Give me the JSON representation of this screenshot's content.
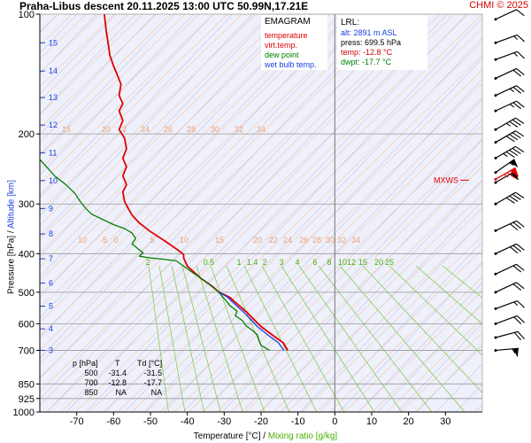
{
  "header": {
    "title": "Praha-Libus   descent   20.11.2025 13:00 UTC   50.99N,17.21E",
    "copyright": "CHMI © 2025"
  },
  "legend": {
    "title": "EMAGRAM",
    "items": [
      {
        "label": "temperature",
        "color": "#e00000"
      },
      {
        "label": "virt.temp.",
        "color": "#e00000"
      },
      {
        "label": "dew point",
        "color": "#008000"
      },
      {
        "label": "wet bulb temp.",
        "color": "#1a3fe0"
      }
    ]
  },
  "lrl": {
    "title": "LRL:",
    "alt": "alt: 2891 m ASL",
    "press": "press: 699.5 hPa",
    "temp": "temp: -12.8 °C",
    "dwpt": "dwpt: -17.7 °C",
    "colors": {
      "alt": "#1a3fe0",
      "press": "#000000",
      "temp": "#d40000",
      "dwpt": "#008000"
    }
  },
  "table": {
    "headers": [
      "p [hPa]",
      "T",
      "Td [°C]"
    ],
    "rows": [
      [
        "500",
        "-31.4",
        "-31.5"
      ],
      [
        "700",
        "-12.8",
        "-17.7"
      ],
      [
        "850",
        "NA",
        "NA"
      ]
    ]
  },
  "axes": {
    "xlabel": "Temperature [°C]",
    "xlabel_sep": "/",
    "xlabel2": "Mixing ratio [g/kg]",
    "ylabel": "Pressure [hPa]",
    "ylabel_sep": "/",
    "ylabel2": "Altitude [km]"
  },
  "mxws_label": "MXWS",
  "chart_data": {
    "type": "line",
    "y_scale": "log-pressure",
    "xlim": [
      -80,
      40
    ],
    "ylim": [
      1000,
      100
    ],
    "x_ticks": [
      -70,
      -60,
      -50,
      -40,
      -30,
      -20,
      -10,
      0,
      10,
      20,
      30
    ],
    "pressure_ticks": [
      100,
      200,
      300,
      400,
      500,
      600,
      700,
      850,
      925,
      1000
    ],
    "altitude_ticks": [
      {
        "km": 3,
        "p": 700
      },
      {
        "km": 4,
        "p": 618
      },
      {
        "km": 5,
        "p": 542
      },
      {
        "km": 6,
        "p": 474
      },
      {
        "km": 7,
        "p": 412
      },
      {
        "km": 8,
        "p": 357
      },
      {
        "km": 9,
        "p": 308
      },
      {
        "km": 10,
        "p": 262
      },
      {
        "km": 11,
        "p": 223
      },
      {
        "km": 12,
        "p": 190
      },
      {
        "km": 13,
        "p": 162
      },
      {
        "km": 14,
        "p": 139
      },
      {
        "km": 15,
        "p": 118
      }
    ],
    "isotherm_labels": {
      "row1_p": 200,
      "row1": [
        "15",
        "20",
        "2",
        "24",
        "26",
        "28",
        "30",
        "32",
        "34"
      ],
      "row2_p": 395,
      "row2": [
        "10",
        "-5",
        "0",
        "5",
        "10",
        "15",
        "20",
        "22",
        "24",
        "26",
        "28",
        "30",
        "32",
        "34"
      ]
    },
    "mixing_ratio_labels": [
      "2",
      "0.5",
      "1",
      "1.4",
      "2",
      "3",
      "4",
      "6",
      "8",
      "10",
      "12",
      "15",
      "20",
      "25"
    ],
    "series": [
      {
        "name": "temperature",
        "color": "#e00000",
        "points": [
          [
            -12.8,
            700
          ],
          [
            -14,
            670
          ],
          [
            -17,
            640
          ],
          [
            -20,
            610
          ],
          [
            -22,
            585
          ],
          [
            -24,
            560
          ],
          [
            -26.5,
            535
          ],
          [
            -28.5,
            515
          ],
          [
            -31.4,
            500
          ],
          [
            -33,
            485
          ],
          [
            -36.5,
            460
          ],
          [
            -40,
            430
          ],
          [
            -41,
            410
          ],
          [
            -41,
            402
          ],
          [
            -42.5,
            392
          ],
          [
            -46,
            372
          ],
          [
            -50,
            352
          ],
          [
            -53,
            335
          ],
          [
            -55,
            320
          ],
          [
            -56,
            308
          ],
          [
            -57,
            296
          ],
          [
            -57.5,
            280
          ],
          [
            -56.5,
            268
          ],
          [
            -57.5,
            255
          ],
          [
            -56.5,
            242
          ],
          [
            -57.5,
            230
          ],
          [
            -56.5,
            218
          ],
          [
            -57,
            205
          ],
          [
            -58.5,
            195
          ],
          [
            -57.5,
            185
          ],
          [
            -58.5,
            175
          ],
          [
            -57.5,
            168
          ],
          [
            -58.5,
            160
          ],
          [
            -58,
            150
          ],
          [
            -59,
            142
          ],
          [
            -60,
            135
          ],
          [
            -61,
            127
          ],
          [
            -61.5,
            118
          ],
          [
            -62,
            110
          ],
          [
            -62.5,
            100
          ]
        ]
      },
      {
        "name": "virt.temp.",
        "color": "#e00000",
        "points": [
          [
            -12.7,
            700
          ],
          [
            -13.9,
            670
          ],
          [
            -16.9,
            640
          ],
          [
            -19.9,
            610
          ],
          [
            -21.9,
            585
          ],
          [
            -23.9,
            560
          ],
          [
            -26.4,
            535
          ],
          [
            -28.5,
            515
          ],
          [
            -31.4,
            500
          ]
        ]
      },
      {
        "name": "dew point",
        "color": "#008000",
        "points": [
          [
            -17.7,
            700
          ],
          [
            -20,
            680
          ],
          [
            -20.5,
            662
          ],
          [
            -21,
            640
          ],
          [
            -22.5,
            622
          ],
          [
            -24,
            608
          ],
          [
            -25,
            590
          ],
          [
            -27,
            572
          ],
          [
            -26.5,
            558
          ],
          [
            -28.5,
            540
          ],
          [
            -29.5,
            525
          ],
          [
            -31.5,
            500
          ],
          [
            -35,
            470
          ],
          [
            -38,
            450
          ],
          [
            -41,
            430
          ],
          [
            -43,
            417
          ],
          [
            -46.5,
            413
          ],
          [
            -50,
            410
          ],
          [
            -53,
            406
          ],
          [
            -52,
            398
          ],
          [
            -53.5,
            388
          ],
          [
            -55,
            378
          ],
          [
            -54,
            366
          ],
          [
            -55,
            355
          ],
          [
            -57,
            346
          ],
          [
            -60,
            338
          ],
          [
            -63,
            328
          ],
          [
            -66,
            318
          ],
          [
            -67.5,
            308
          ],
          [
            -69,
            296
          ],
          [
            -70.5,
            282
          ],
          [
            -73,
            268
          ],
          [
            -76,
            255
          ],
          [
            -78,
            243
          ],
          [
            -80,
            232
          ]
        ]
      },
      {
        "name": "wet bulb temp.",
        "color": "#1a3fe0",
        "points": [
          [
            -13.8,
            700
          ],
          [
            -15.3,
            670
          ],
          [
            -18.2,
            640
          ],
          [
            -21,
            610
          ],
          [
            -22.8,
            585
          ],
          [
            -24.8,
            560
          ],
          [
            -27.2,
            535
          ],
          [
            -29,
            515
          ],
          [
            -31.4,
            500
          ]
        ]
      }
    ],
    "winds": [
      {
        "p": 700,
        "dir": 265,
        "kt": 55
      },
      {
        "p": 650,
        "dir": 255,
        "kt": 20
      },
      {
        "p": 600,
        "dir": 250,
        "kt": 20
      },
      {
        "p": 550,
        "dir": 250,
        "kt": 15
      },
      {
        "p": 500,
        "dir": 245,
        "kt": 20
      },
      {
        "p": 450,
        "dir": 245,
        "kt": 20
      },
      {
        "p": 400,
        "dir": 245,
        "kt": 30
      },
      {
        "p": 350,
        "dir": 245,
        "kt": 30
      },
      {
        "p": 300,
        "dir": 240,
        "kt": 40
      },
      {
        "p": 265,
        "dir": 240,
        "kt": 60
      },
      {
        "p": 260,
        "dir": 240,
        "kt": 75
      },
      {
        "p": 250,
        "dir": 235,
        "kt": 55
      },
      {
        "p": 230,
        "dir": 240,
        "kt": 45
      },
      {
        "p": 210,
        "dir": 240,
        "kt": 40
      },
      {
        "p": 195,
        "dir": 240,
        "kt": 35
      },
      {
        "p": 175,
        "dir": 245,
        "kt": 25
      },
      {
        "p": 160,
        "dir": 245,
        "kt": 25
      },
      {
        "p": 145,
        "dir": 245,
        "kt": 20
      },
      {
        "p": 130,
        "dir": 250,
        "kt": 15
      },
      {
        "p": 118,
        "dir": 250,
        "kt": 15
      },
      {
        "p": 103,
        "dir": 245,
        "kt": 10
      }
    ],
    "max_wind_pressure": 260
  }
}
